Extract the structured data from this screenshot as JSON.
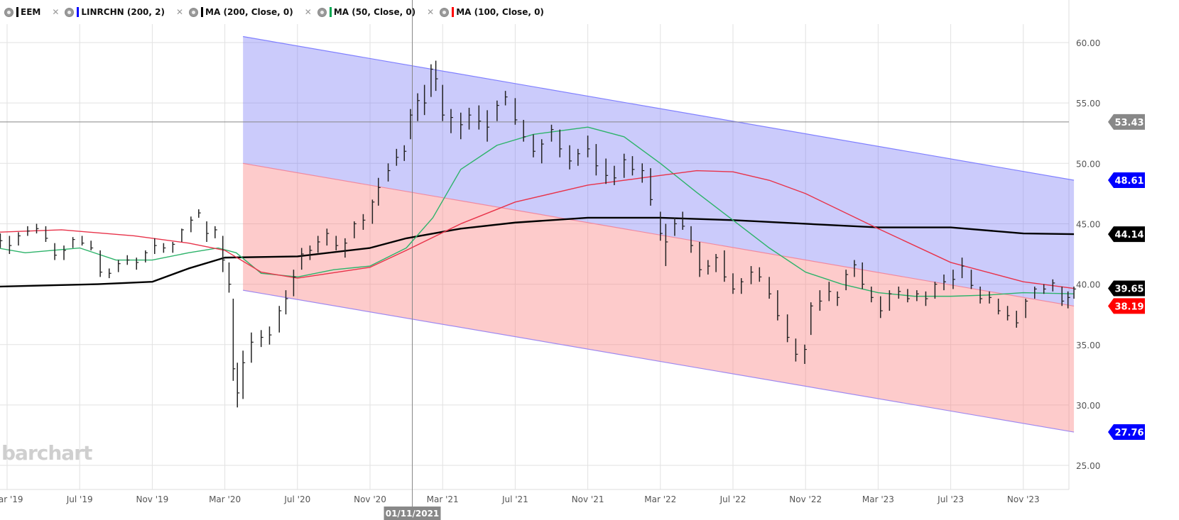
{
  "legend": [
    {
      "label": "EEM",
      "color": "#000000"
    },
    {
      "label": "LINRCHN (200, 2)",
      "color": "#0000ff"
    },
    {
      "label": "MA (200, Close, 0)",
      "color": "#000000"
    },
    {
      "label": "MA (50, Close, 0)",
      "color": "#00a651"
    },
    {
      "label": "MA (100, Close, 0)",
      "color": "#ff0000"
    }
  ],
  "watermark": "barchart",
  "chart_data": {
    "type": "ohlc-bar",
    "ylim": [
      25,
      60
    ],
    "yticks": [
      "60.00",
      "55.00",
      "50.00",
      "45.00",
      "40.00",
      "35.00",
      "30.00",
      "25.00"
    ],
    "xticks": [
      [
        "2019-03-01",
        "Mar '19"
      ],
      [
        "2019-07-01",
        "Jul '19"
      ],
      [
        "2019-11-01",
        "Nov '19"
      ],
      [
        "2020-03-01",
        "Mar '20"
      ],
      [
        "2020-07-01",
        "Jul '20"
      ],
      [
        "2020-11-01",
        "Nov '20"
      ],
      [
        "2021-03-01",
        "Mar '21"
      ],
      [
        "2021-07-01",
        "Jul '21"
      ],
      [
        "2021-11-01",
        "Nov '21"
      ],
      [
        "2022-03-01",
        "Mar '22"
      ],
      [
        "2022-07-01",
        "Jul '22"
      ],
      [
        "2022-11-01",
        "Nov '22"
      ],
      [
        "2023-03-01",
        "Mar '23"
      ],
      [
        "2023-07-01",
        "Jul '23"
      ],
      [
        "2023-11-01",
        "Nov '23"
      ]
    ],
    "grid": true,
    "crosshair": {
      "date_label": "01/11/2021",
      "date": "2021-01-11",
      "price": 53.43,
      "price_label": "53.43"
    },
    "bars": [
      [
        "2019-02-20",
        44.2,
        43.0,
        43.6
      ],
      [
        "2019-03-05",
        44.0,
        42.5,
        43.2
      ],
      [
        "2019-03-20",
        44.3,
        43.2,
        44.0
      ],
      [
        "2019-04-05",
        44.8,
        44.0,
        44.4
      ],
      [
        "2019-04-20",
        45.0,
        44.2,
        44.6
      ],
      [
        "2019-05-05",
        44.8,
        43.5,
        43.8
      ],
      [
        "2019-05-20",
        43.4,
        42.0,
        42.4
      ],
      [
        "2019-06-05",
        43.2,
        42.0,
        42.8
      ],
      [
        "2019-06-20",
        43.9,
        43.0,
        43.7
      ],
      [
        "2019-07-05",
        44.0,
        43.2,
        43.4
      ],
      [
        "2019-07-20",
        43.6,
        42.8,
        43.0
      ],
      [
        "2019-08-05",
        42.8,
        40.6,
        41.0
      ],
      [
        "2019-08-20",
        41.3,
        40.5,
        40.9
      ],
      [
        "2019-09-05",
        42.0,
        41.0,
        41.7
      ],
      [
        "2019-09-20",
        42.4,
        41.6,
        42.0
      ],
      [
        "2019-10-05",
        42.2,
        41.2,
        41.8
      ],
      [
        "2019-10-20",
        42.8,
        41.8,
        42.6
      ],
      [
        "2019-11-05",
        43.8,
        42.5,
        43.2
      ],
      [
        "2019-11-20",
        43.4,
        42.6,
        43.0
      ],
      [
        "2019-12-05",
        43.5,
        42.6,
        43.3
      ],
      [
        "2019-12-20",
        44.6,
        43.5,
        44.5
      ],
      [
        "2020-01-05",
        45.6,
        44.3,
        45.3
      ],
      [
        "2020-01-18",
        46.2,
        45.5,
        45.9
      ],
      [
        "2020-02-01",
        45.2,
        43.5,
        44.2
      ],
      [
        "2020-02-15",
        44.8,
        43.8,
        44.5
      ],
      [
        "2020-02-28",
        44.0,
        41.0,
        42.0
      ],
      [
        "2020-03-08",
        41.8,
        39.3,
        40.0
      ],
      [
        "2020-03-15",
        38.8,
        32.0,
        33.0
      ],
      [
        "2020-03-22",
        33.5,
        29.8,
        31.0
      ],
      [
        "2020-04-01",
        34.5,
        30.5,
        33.5
      ],
      [
        "2020-04-15",
        36.0,
        33.5,
        35.2
      ],
      [
        "2020-05-01",
        36.2,
        34.8,
        35.6
      ],
      [
        "2020-05-15",
        36.5,
        35.0,
        35.8
      ],
      [
        "2020-06-01",
        38.2,
        36.0,
        37.8
      ],
      [
        "2020-06-12",
        39.5,
        37.5,
        38.8
      ],
      [
        "2020-06-25",
        41.2,
        39.0,
        40.6
      ],
      [
        "2020-07-08",
        43.0,
        41.2,
        42.5
      ],
      [
        "2020-07-22",
        43.2,
        42.0,
        42.8
      ],
      [
        "2020-08-05",
        44.0,
        42.6,
        43.5
      ],
      [
        "2020-08-20",
        44.6,
        43.2,
        44.2
      ],
      [
        "2020-09-05",
        44.0,
        42.8,
        43.2
      ],
      [
        "2020-09-20",
        43.8,
        42.2,
        43.4
      ],
      [
        "2020-10-05",
        45.2,
        43.8,
        45.0
      ],
      [
        "2020-10-20",
        45.8,
        44.5,
        45.3
      ],
      [
        "2020-11-05",
        47.0,
        45.0,
        46.8
      ],
      [
        "2020-11-15",
        48.8,
        46.5,
        48.0
      ],
      [
        "2020-12-01",
        50.0,
        48.5,
        49.4
      ],
      [
        "2020-12-15",
        51.2,
        49.8,
        50.5
      ],
      [
        "2020-12-28",
        51.5,
        50.2,
        51.0
      ],
      [
        "2021-01-08",
        54.5,
        52.0,
        54.0
      ],
      [
        "2021-01-20",
        55.8,
        53.5,
        55.2
      ],
      [
        "2021-02-01",
        56.5,
        54.0,
        55.0
      ],
      [
        "2021-02-12",
        58.2,
        55.5,
        57.8
      ],
      [
        "2021-02-20",
        58.5,
        56.0,
        57.0
      ],
      [
        "2021-03-01",
        56.5,
        53.5,
        54.0
      ],
      [
        "2021-03-15",
        54.5,
        52.5,
        53.8
      ],
      [
        "2021-04-01",
        54.2,
        52.0,
        53.2
      ],
      [
        "2021-04-15",
        54.6,
        52.8,
        54.0
      ],
      [
        "2021-05-01",
        54.8,
        52.8,
        53.5
      ],
      [
        "2021-05-15",
        54.4,
        51.8,
        53.0
      ],
      [
        "2021-06-01",
        55.2,
        53.5,
        54.8
      ],
      [
        "2021-06-15",
        56.0,
        54.8,
        55.5
      ],
      [
        "2021-07-01",
        55.4,
        53.2,
        53.6
      ],
      [
        "2021-07-15",
        53.6,
        51.8,
        52.2
      ],
      [
        "2021-08-01",
        52.4,
        50.5,
        51.0
      ],
      [
        "2021-08-15",
        52.0,
        50.0,
        51.6
      ],
      [
        "2021-09-01",
        53.2,
        51.8,
        52.8
      ],
      [
        "2021-09-15",
        52.8,
        50.5,
        51.2
      ],
      [
        "2021-10-01",
        51.5,
        49.5,
        50.2
      ],
      [
        "2021-10-15",
        51.2,
        49.8,
        50.8
      ],
      [
        "2021-11-01",
        52.3,
        50.5,
        51.2
      ],
      [
        "2021-11-15",
        51.6,
        49.0,
        49.8
      ],
      [
        "2021-12-01",
        50.4,
        48.3,
        49.0
      ],
      [
        "2021-12-15",
        49.8,
        48.2,
        48.8
      ],
      [
        "2022-01-01",
        50.8,
        48.8,
        50.3
      ],
      [
        "2022-01-15",
        50.6,
        49.0,
        49.5
      ],
      [
        "2022-02-01",
        50.0,
        48.4,
        49.4
      ],
      [
        "2022-02-15",
        49.6,
        46.5,
        47.0
      ],
      [
        "2022-03-01",
        46.0,
        43.6,
        44.2
      ],
      [
        "2022-03-10",
        45.0,
        41.5,
        43.5
      ],
      [
        "2022-03-25",
        45.5,
        44.0,
        45.0
      ],
      [
        "2022-04-08",
        46.0,
        44.5,
        44.8
      ],
      [
        "2022-04-22",
        44.8,
        42.6,
        43.2
      ],
      [
        "2022-05-06",
        43.5,
        40.6,
        41.2
      ],
      [
        "2022-05-20",
        42.0,
        40.8,
        41.5
      ],
      [
        "2022-06-03",
        42.5,
        41.0,
        42.2
      ],
      [
        "2022-06-17",
        42.8,
        40.2,
        40.6
      ],
      [
        "2022-07-01",
        40.9,
        39.2,
        39.6
      ],
      [
        "2022-07-15",
        40.5,
        39.2,
        40.2
      ],
      [
        "2022-08-01",
        41.5,
        40.0,
        41.0
      ],
      [
        "2022-08-15",
        41.4,
        40.2,
        40.6
      ],
      [
        "2022-09-01",
        40.6,
        38.8,
        39.2
      ],
      [
        "2022-09-15",
        39.5,
        37.0,
        37.4
      ],
      [
        "2022-10-01",
        37.5,
        35.2,
        35.6
      ],
      [
        "2022-10-15",
        35.5,
        33.6,
        34.2
      ],
      [
        "2022-10-30",
        35.0,
        33.4,
        34.6
      ],
      [
        "2022-11-10",
        38.5,
        35.8,
        38.2
      ],
      [
        "2022-11-25",
        39.5,
        37.8,
        38.6
      ],
      [
        "2022-12-10",
        40.2,
        38.6,
        39.4
      ],
      [
        "2022-12-24",
        39.4,
        38.2,
        38.9
      ],
      [
        "2023-01-08",
        41.2,
        39.5,
        40.8
      ],
      [
        "2023-01-22",
        42.0,
        40.6,
        41.6
      ],
      [
        "2023-02-05",
        41.8,
        39.6,
        40.0
      ],
      [
        "2023-02-20",
        39.8,
        38.5,
        38.9
      ],
      [
        "2023-03-05",
        39.0,
        37.2,
        37.8
      ],
      [
        "2023-03-20",
        39.5,
        37.8,
        39.2
      ],
      [
        "2023-04-05",
        39.8,
        38.8,
        39.4
      ],
      [
        "2023-04-20",
        39.6,
        38.5,
        38.8
      ],
      [
        "2023-05-05",
        39.5,
        38.6,
        39.2
      ],
      [
        "2023-05-20",
        39.4,
        38.2,
        38.8
      ],
      [
        "2023-06-05",
        40.2,
        38.8,
        40.0
      ],
      [
        "2023-06-20",
        40.8,
        39.5,
        40.2
      ],
      [
        "2023-07-05",
        41.2,
        39.6,
        40.4
      ],
      [
        "2023-07-20",
        42.2,
        40.5,
        41.5
      ],
      [
        "2023-08-05",
        41.2,
        39.6,
        39.9
      ],
      [
        "2023-08-20",
        39.8,
        38.4,
        38.8
      ],
      [
        "2023-09-05",
        39.4,
        38.4,
        38.9
      ],
      [
        "2023-09-20",
        38.8,
        37.5,
        37.8
      ],
      [
        "2023-10-05",
        38.2,
        37.0,
        37.4
      ],
      [
        "2023-10-20",
        37.8,
        36.4,
        36.8
      ],
      [
        "2023-11-05",
        38.8,
        37.2,
        38.6
      ],
      [
        "2023-11-20",
        39.8,
        38.8,
        39.6
      ],
      [
        "2023-12-05",
        40.0,
        39.2,
        39.6
      ],
      [
        "2023-12-20",
        40.4,
        39.4,
        40.1
      ],
      [
        "2024-01-05",
        39.8,
        38.2,
        38.6
      ],
      [
        "2024-01-15",
        39.4,
        38.0,
        38.9
      ],
      [
        "2024-01-25",
        39.8,
        38.8,
        39.6
      ]
    ],
    "regression_channel": {
      "name": "LINRCHN (200, 2)",
      "start": "2020-04-01",
      "end": "2024-01-25",
      "upper": [
        60.5,
        48.61
      ],
      "middle": [
        50.0,
        38.19
      ],
      "lower": [
        39.5,
        27.76
      ]
    },
    "series": [
      {
        "name": "MA (200, Close, 0)",
        "color": "#000000",
        "points": [
          [
            "2019-02-15",
            39.8
          ],
          [
            "2019-08-01",
            40.0
          ],
          [
            "2019-11-01",
            40.2
          ],
          [
            "2020-01-01",
            41.3
          ],
          [
            "2020-03-01",
            42.2
          ],
          [
            "2020-07-01",
            42.3
          ],
          [
            "2020-11-01",
            43.0
          ],
          [
            "2021-01-01",
            43.8
          ],
          [
            "2021-04-01",
            44.6
          ],
          [
            "2021-07-01",
            45.1
          ],
          [
            "2021-11-01",
            45.5
          ],
          [
            "2022-03-01",
            45.5
          ],
          [
            "2022-07-01",
            45.3
          ],
          [
            "2022-11-01",
            45.0
          ],
          [
            "2023-03-01",
            44.7
          ],
          [
            "2023-07-01",
            44.7
          ],
          [
            "2023-11-01",
            44.2
          ],
          [
            "2024-01-25",
            44.14
          ]
        ]
      },
      {
        "name": "MA (50, Close, 0)",
        "color": "#2db36a",
        "points": [
          [
            "2019-02-15",
            43.0
          ],
          [
            "2019-04-01",
            42.6
          ],
          [
            "2019-07-01",
            43.0
          ],
          [
            "2019-09-01",
            42.0
          ],
          [
            "2019-11-01",
            42.0
          ],
          [
            "2020-01-01",
            42.6
          ],
          [
            "2020-02-20",
            43.0
          ],
          [
            "2020-03-20",
            42.6
          ],
          [
            "2020-05-01",
            40.9
          ],
          [
            "2020-07-01",
            40.6
          ],
          [
            "2020-09-01",
            41.2
          ],
          [
            "2020-11-01",
            41.5
          ],
          [
            "2021-01-01",
            43.0
          ],
          [
            "2021-02-15",
            45.5
          ],
          [
            "2021-04-01",
            49.5
          ],
          [
            "2021-06-01",
            51.5
          ],
          [
            "2021-08-01",
            52.4
          ],
          [
            "2021-11-01",
            53.0
          ],
          [
            "2022-01-01",
            52.2
          ],
          [
            "2022-03-01",
            50.0
          ],
          [
            "2022-05-01",
            47.6
          ],
          [
            "2022-07-01",
            45.3
          ],
          [
            "2022-09-01",
            43.0
          ],
          [
            "2022-11-01",
            41.0
          ],
          [
            "2023-01-01",
            40.0
          ],
          [
            "2023-03-01",
            39.3
          ],
          [
            "2023-05-01",
            39.0
          ],
          [
            "2023-07-01",
            39.0
          ],
          [
            "2023-09-01",
            39.1
          ],
          [
            "2023-11-01",
            39.3
          ],
          [
            "2024-01-25",
            39.2
          ]
        ]
      },
      {
        "name": "MA (100, Close, 0)",
        "color": "#e8334a",
        "points": [
          [
            "2019-02-15",
            44.3
          ],
          [
            "2019-06-01",
            44.5
          ],
          [
            "2019-10-01",
            44.0
          ],
          [
            "2020-01-01",
            43.4
          ],
          [
            "2020-03-01",
            42.8
          ],
          [
            "2020-05-01",
            41.0
          ],
          [
            "2020-07-01",
            40.5
          ],
          [
            "2020-11-01",
            41.4
          ],
          [
            "2021-01-01",
            42.8
          ],
          [
            "2021-04-01",
            45.0
          ],
          [
            "2021-07-01",
            46.8
          ],
          [
            "2021-11-01",
            48.2
          ],
          [
            "2022-02-01",
            48.8
          ],
          [
            "2022-05-01",
            49.4
          ],
          [
            "2022-07-01",
            49.3
          ],
          [
            "2022-09-01",
            48.6
          ],
          [
            "2022-11-01",
            47.5
          ],
          [
            "2023-03-01",
            44.6
          ],
          [
            "2023-07-01",
            41.8
          ],
          [
            "2023-11-01",
            40.2
          ],
          [
            "2024-01-25",
            39.65
          ]
        ]
      }
    ],
    "price_badges": [
      {
        "value": "53.43",
        "color": "#888888"
      },
      {
        "value": "48.61",
        "color": "#0000ff"
      },
      {
        "value": "44.14",
        "color": "#000000"
      },
      {
        "value": "39.65",
        "color": "#000000"
      },
      {
        "value": "38.19",
        "color": "#ff0000"
      },
      {
        "value": "27.76",
        "color": "#0000ff"
      }
    ]
  }
}
